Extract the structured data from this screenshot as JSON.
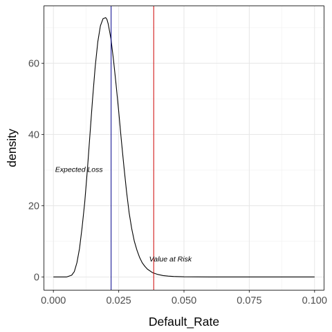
{
  "chart_data": {
    "type": "line",
    "xlabel": "Default_Rate",
    "ylabel": "density",
    "xlim": [
      -0.0035,
      0.1035
    ],
    "ylim": [
      -3.6,
      76.0
    ],
    "x_ticks": [
      0.0,
      0.025,
      0.05,
      0.075,
      0.1
    ],
    "x_tick_labels": [
      "0.000",
      "0.025",
      "0.050",
      "0.075",
      "0.100"
    ],
    "y_ticks": [
      0,
      20,
      40,
      60
    ],
    "y_tick_labels": [
      "0",
      "20",
      "40",
      "60"
    ],
    "grid": true,
    "legend": "none",
    "series": [
      {
        "x": [
          0.0,
          0.005,
          0.007,
          0.008,
          0.009,
          0.01,
          0.011,
          0.012,
          0.013,
          0.014,
          0.015,
          0.016,
          0.017,
          0.018,
          0.019,
          0.02,
          0.0205,
          0.021,
          0.022,
          0.023,
          0.024,
          0.025,
          0.026,
          0.027,
          0.028,
          0.029,
          0.03,
          0.031,
          0.032,
          0.033,
          0.034,
          0.035,
          0.036,
          0.038,
          0.04,
          0.042,
          0.044,
          0.046,
          0.048,
          0.05,
          0.055,
          0.06,
          0.07,
          0.08,
          0.09,
          0.1
        ],
        "y": [
          0,
          0,
          0.5,
          1.5,
          4,
          8,
          14,
          21,
          30,
          40,
          50,
          59,
          66,
          70.5,
          72.5,
          72.8,
          72.3,
          71,
          67,
          61,
          54,
          46.5,
          38.5,
          31,
          24,
          18,
          13.5,
          10,
          7.5,
          5.5,
          4,
          3,
          2.2,
          1.2,
          0.7,
          0.4,
          0.25,
          0.15,
          0.1,
          0.05,
          0.02,
          0.01,
          0,
          0,
          0,
          0
        ],
        "color": "#000000"
      }
    ],
    "vlines": [
      {
        "x": 0.0221,
        "color": "#00008b"
      },
      {
        "x": 0.0384,
        "color": "#cc0000"
      }
    ],
    "annotations": [
      {
        "text": "Expected Loss",
        "x": 0.0098,
        "y": 29.5
      },
      {
        "text": "Value at Risk",
        "x": 0.0448,
        "y": 4.4
      }
    ]
  }
}
